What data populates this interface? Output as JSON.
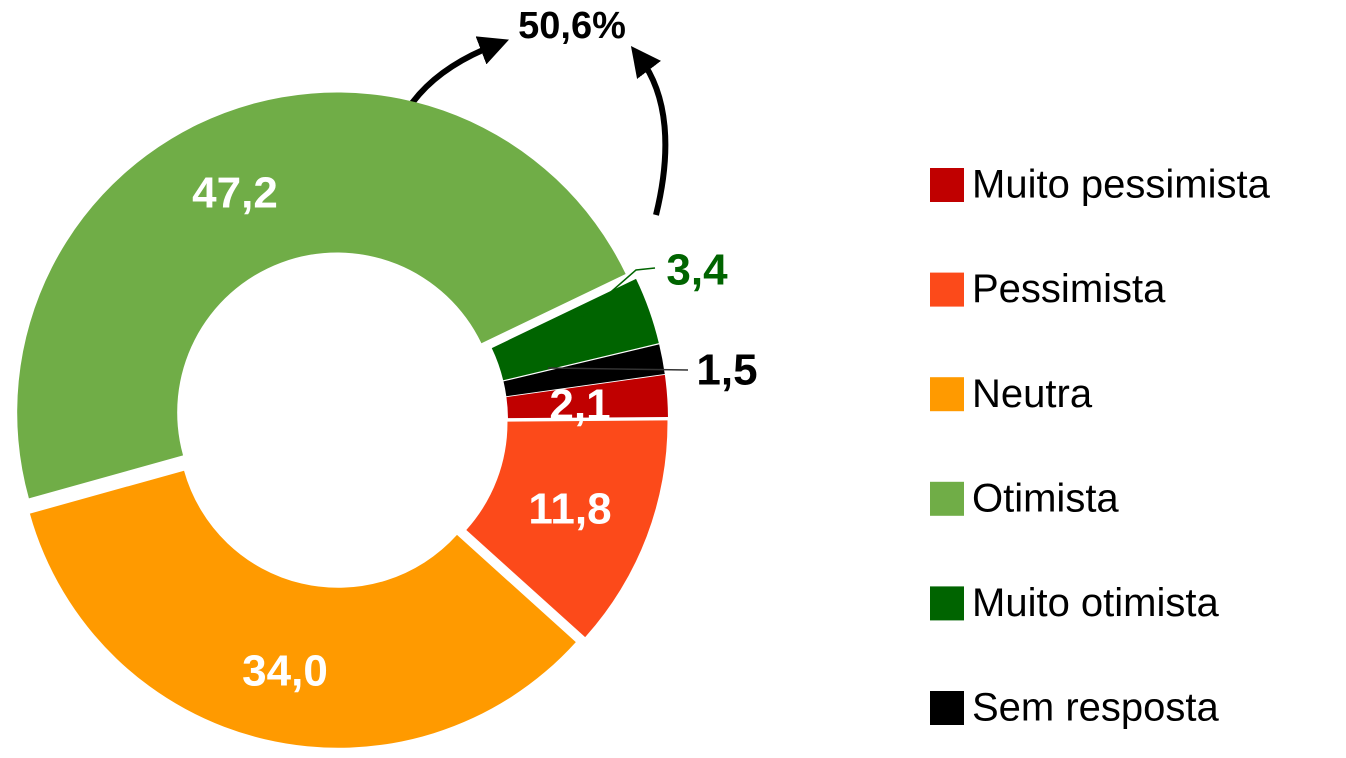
{
  "chart_data": {
    "type": "donut",
    "categories": [
      "Muito pessimista",
      "Pessimista",
      "Neutra",
      "Otimista",
      "Muito otimista",
      "Sem resposta"
    ],
    "values": [
      2.1,
      11.8,
      34.0,
      47.2,
      3.4,
      1.5
    ],
    "value_labels": [
      "2,1",
      "11,8",
      "34,0",
      "47,2",
      "3,4",
      "1,5"
    ],
    "colors": [
      "#c00000",
      "#fc4a1a",
      "#ff9a00",
      "#70ad47",
      "#006400",
      "#000000"
    ],
    "annotation": "50,6%",
    "legend": "right"
  }
}
